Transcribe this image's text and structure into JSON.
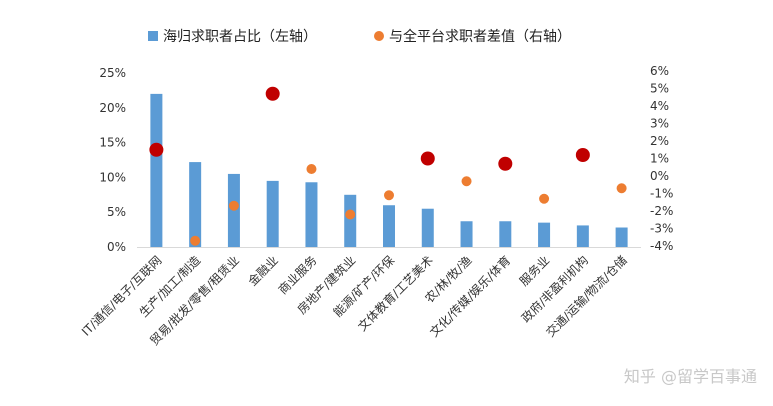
{
  "chart_data": {
    "type": "bar",
    "categories": [
      "IT/通信/电子/互联网",
      "生产/加工/制造",
      "贸易/批发/零售/租赁业",
      "金融业",
      "商业服务",
      "房地产/建筑业",
      "能源/矿产/环保",
      "文体教育/工艺美术",
      "农/林/牧/渔",
      "文化/传媒/娱乐/体育",
      "服务业",
      "政府/非盈利机构",
      "交通/运输/物流/仓储"
    ],
    "series": [
      {
        "name": "海归求职者占比（左轴）",
        "axis": "left",
        "type": "bar",
        "color": "#5b9bd5",
        "values": [
          22.0,
          12.2,
          10.5,
          9.5,
          9.3,
          7.5,
          6.0,
          5.5,
          3.7,
          3.7,
          3.5,
          3.1,
          2.8
        ]
      },
      {
        "name": "与全平台求职者差值（右轴）",
        "axis": "right",
        "type": "scatter",
        "color": "#ed7d31",
        "values": [
          1.5,
          -3.7,
          -1.7,
          4.7,
          0.4,
          -2.2,
          -1.1,
          1.0,
          -0.3,
          0.7,
          -1.3,
          1.2,
          -0.7
        ],
        "highlight_color": "#c00000",
        "highlight": [
          true,
          false,
          false,
          true,
          false,
          false,
          false,
          true,
          false,
          true,
          false,
          true,
          false
        ]
      }
    ],
    "ylim_left": [
      0,
      25
    ],
    "yticks_left": [
      "0%",
      "5%",
      "10%",
      "15%",
      "20%",
      "25%"
    ],
    "ylim_right": [
      -4,
      6
    ],
    "yticks_right": [
      "-4%",
      "-3%",
      "-2%",
      "-1%",
      "0%",
      "1%",
      "2%",
      "3%",
      "4%",
      "5%",
      "6%"
    ],
    "legend_position": "top",
    "grid": false
  },
  "watermark": "知乎 @留学百事通"
}
